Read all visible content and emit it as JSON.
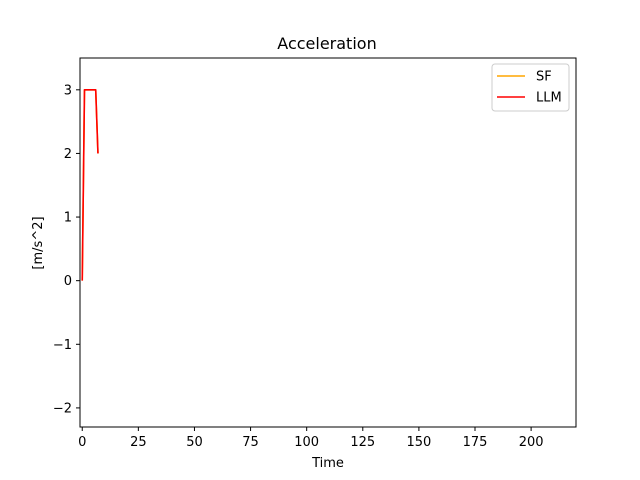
{
  "chart_data": {
    "type": "line",
    "title": "Acceleration",
    "xlabel": "Time",
    "ylabel": "[m/s^2]",
    "xlim": [
      -1,
      220
    ],
    "ylim": [
      -2.3,
      3.5
    ],
    "xticks": [
      0,
      25,
      50,
      75,
      100,
      125,
      150,
      175,
      200
    ],
    "yticks": [
      -2,
      -1,
      0,
      1,
      2,
      3
    ],
    "ytick_labels": [
      "−2",
      "−1",
      "0",
      "1",
      "2",
      "3"
    ],
    "grid": false,
    "legend_position": "top-right",
    "series": [
      {
        "name": "SF",
        "color": "#ffa500",
        "x": [
          0,
          1,
          6,
          7
        ],
        "y": [
          0,
          3,
          3,
          2
        ]
      },
      {
        "name": "LLM",
        "color": "#ff0000",
        "x": [
          0,
          1,
          6,
          7
        ],
        "y": [
          0,
          3,
          3,
          2
        ]
      }
    ]
  }
}
